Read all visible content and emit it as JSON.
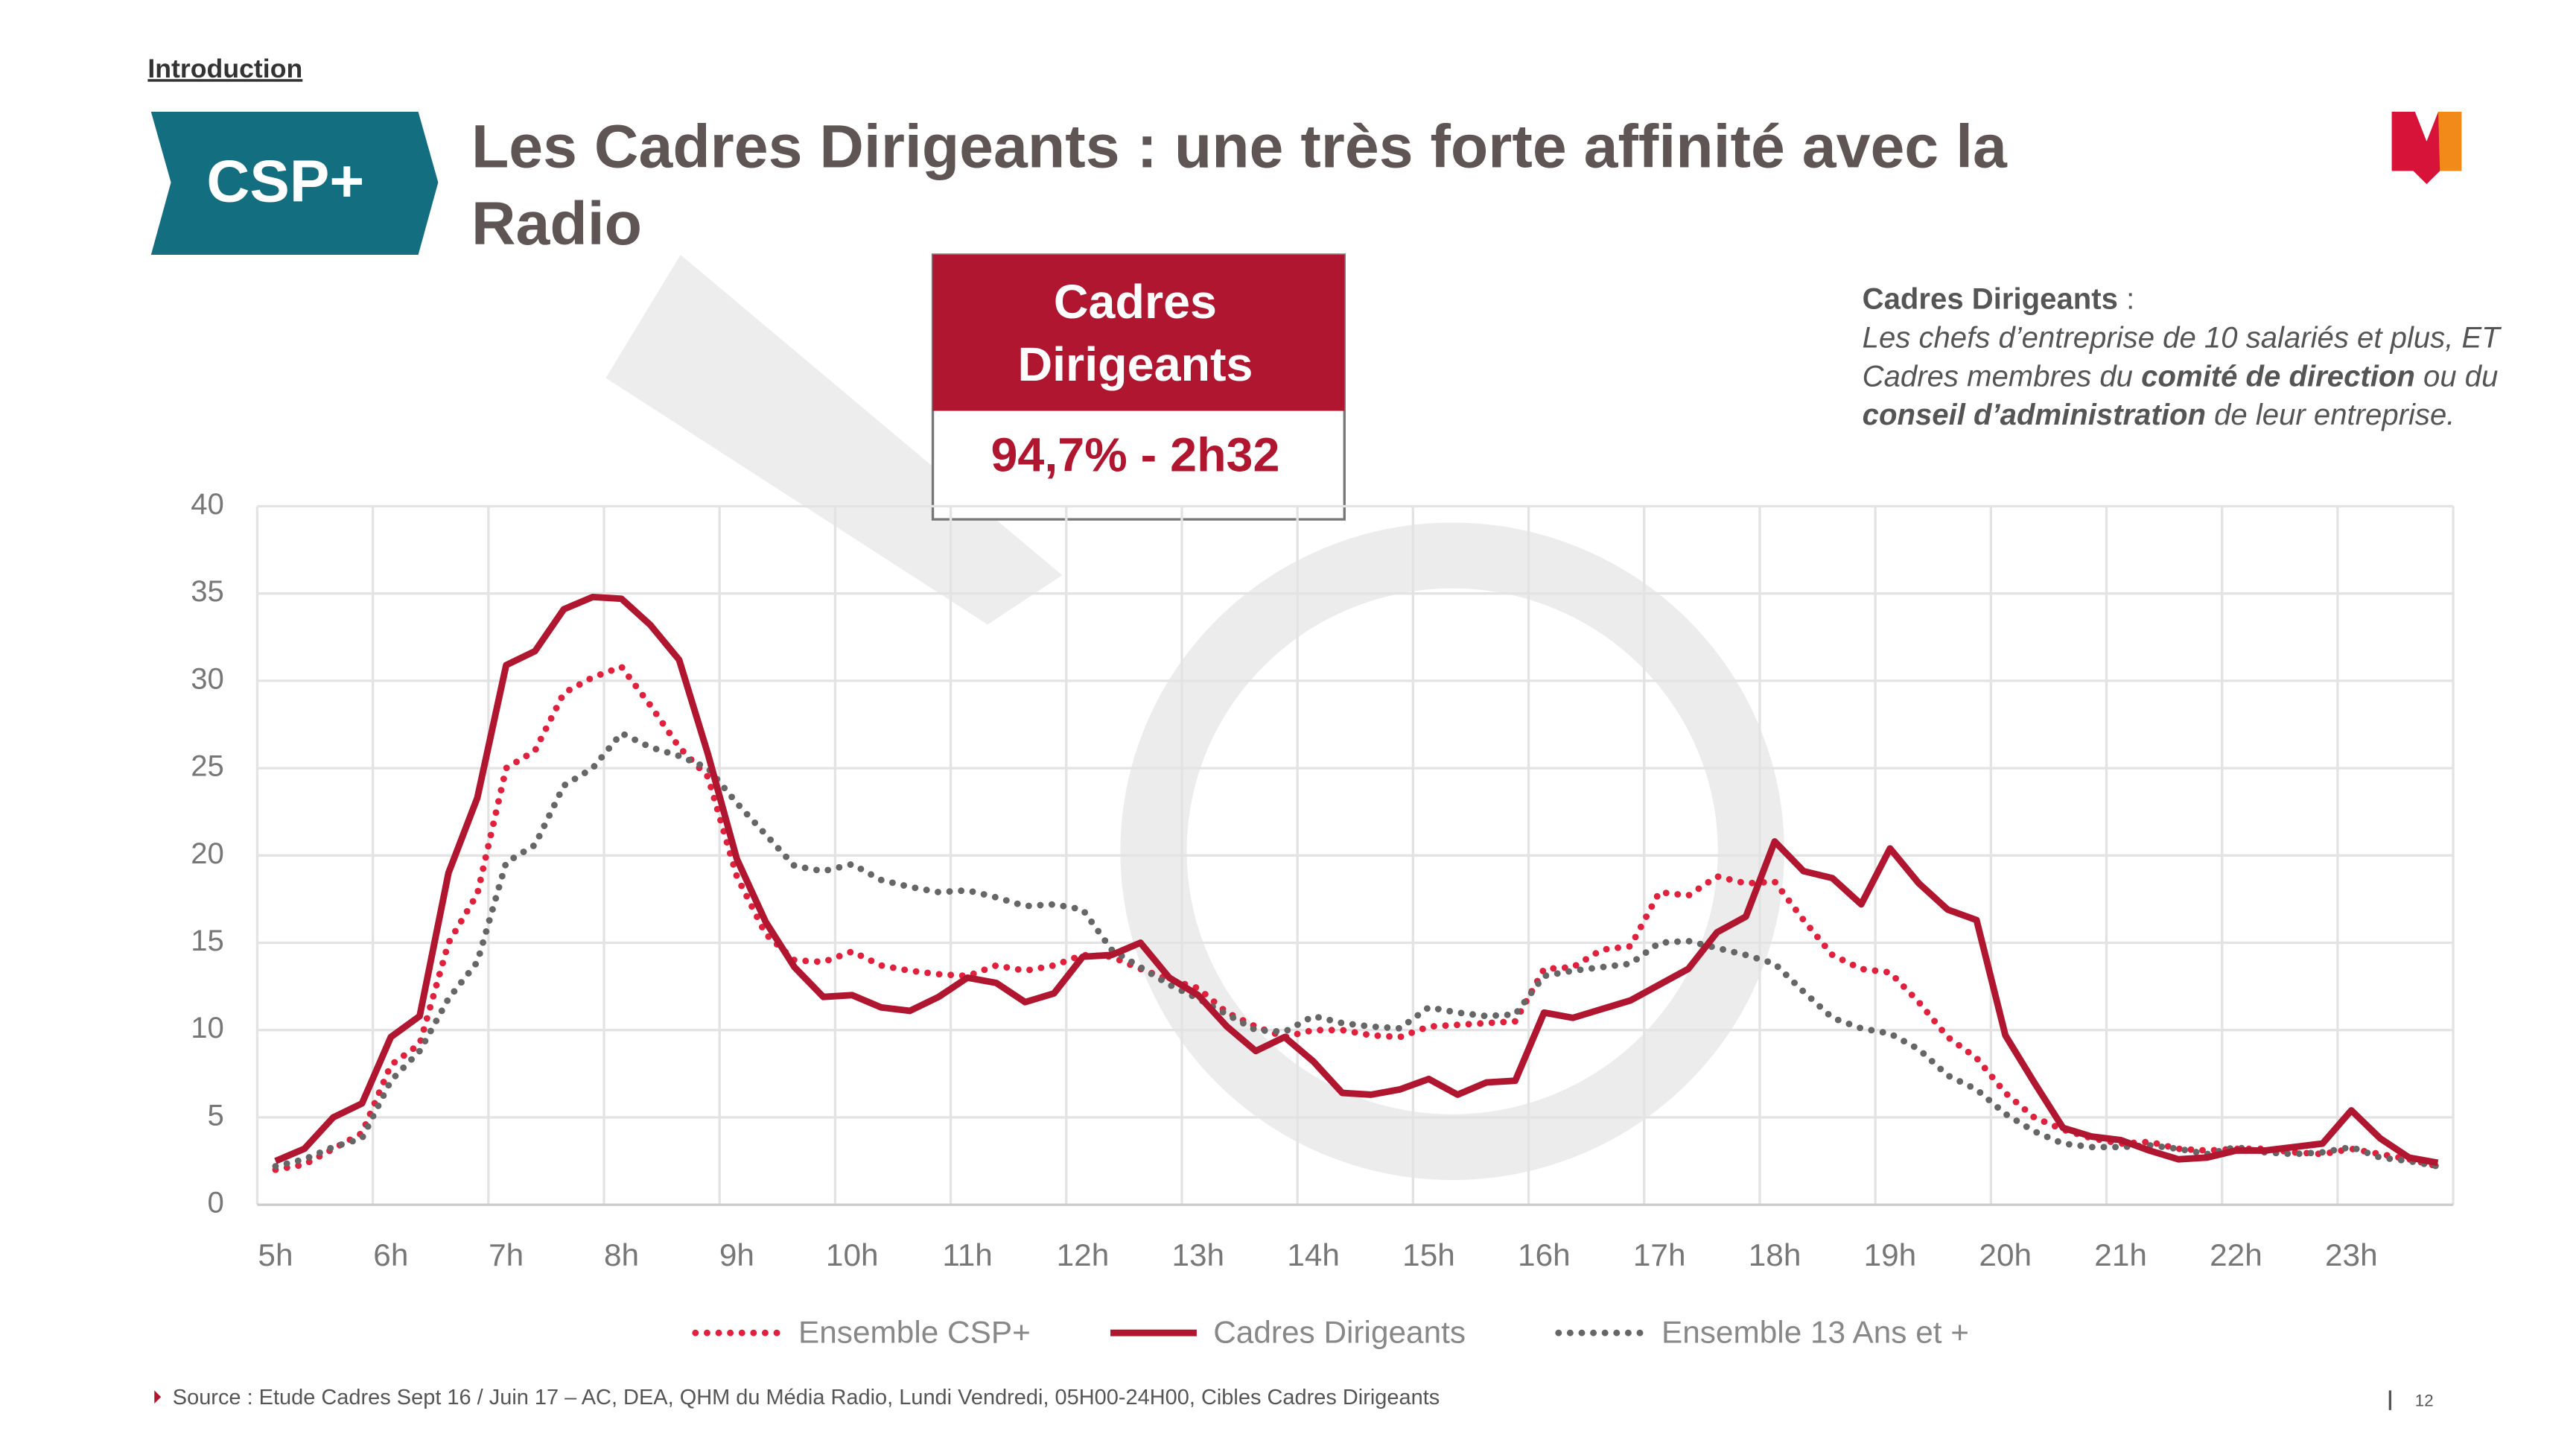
{
  "header": {
    "section": "Introduction",
    "badge": "CSP+",
    "title_lines": [
      "Les Cadres Dirigeants : une très forte affinité avec la",
      "Radio"
    ]
  },
  "highlight": {
    "title_lines": [
      "Cadres",
      "Dirigeants"
    ],
    "value": "94,7% - 2h32"
  },
  "definition": {
    "lines": [
      [
        {
          "text": "Cadres Dirigeants",
          "bold": true
        },
        {
          "text": " :",
          "bold": false
        }
      ],
      [
        {
          "text": "Les chefs d’entreprise de 10 salariés et plus, ET",
          "bold": false
        }
      ],
      [
        {
          "text": "Cadres membres du ",
          "bold": false
        },
        {
          "text": "comité de direction",
          "bold": true
        },
        {
          "text": " ou du",
          "bold": false
        }
      ],
      [
        {
          "text": "conseil d’administration",
          "bold": true
        },
        {
          "text": " de leur entreprise.",
          "bold": false
        }
      ]
    ]
  },
  "chart_data": {
    "type": "line",
    "categories": [
      "5h",
      null,
      null,
      null,
      "6h",
      null,
      null,
      null,
      "7h",
      null,
      null,
      null,
      "8h",
      null,
      null,
      null,
      "9h",
      null,
      null,
      null,
      "10h",
      null,
      null,
      null,
      "11h",
      null,
      null,
      null,
      "12h",
      null,
      null,
      null,
      "13h",
      null,
      null,
      null,
      "14h",
      null,
      null,
      null,
      "15h",
      null,
      null,
      null,
      "16h",
      null,
      null,
      null,
      "17h",
      null,
      null,
      null,
      "18h",
      null,
      null,
      null,
      "19h",
      null,
      null,
      null,
      "20h",
      null,
      null,
      null,
      "21h",
      null,
      null,
      null,
      "22h",
      null,
      null,
      null,
      "23h",
      null,
      null,
      null
    ],
    "ylim": [
      0,
      40
    ],
    "yticks": [
      0,
      5,
      10,
      15,
      20,
      25,
      30,
      35,
      40
    ],
    "grid": true,
    "legend": "bottom",
    "series": [
      {
        "name": "Ensemble CSP+",
        "color": "#e0203c",
        "style": "dotted",
        "values": [
          2.0,
          2.3,
          3.2,
          4.1,
          8.0,
          9.2,
          15.0,
          17.8,
          25.0,
          26.0,
          29.3,
          30.2,
          30.8,
          28.6,
          26.2,
          24.5,
          18.8,
          15.5,
          14.0,
          13.9,
          14.5,
          13.7,
          13.4,
          13.2,
          13.1,
          13.7,
          13.4,
          13.7,
          14.3,
          14.2,
          13.5,
          12.9,
          12.4,
          11.0,
          10.2,
          9.6,
          10.0,
          10.0,
          9.7,
          9.6,
          10.2,
          10.3,
          10.4,
          10.5,
          13.5,
          13.6,
          14.6,
          14.8,
          17.9,
          17.7,
          18.8,
          18.4,
          18.5,
          16.3,
          14.3,
          13.5,
          13.3,
          11.6,
          9.6,
          8.4,
          6.4,
          5.0,
          4.3,
          3.8,
          3.5,
          3.6,
          3.2,
          3.1,
          3.2,
          3.2,
          3.0,
          2.9,
          3.2,
          2.9,
          2.6,
          2.2
        ]
      },
      {
        "name": "Cadres Dirigeants",
        "color": "#b0162f",
        "style": "solid",
        "values": [
          2.5,
          3.2,
          5.0,
          5.8,
          9.6,
          10.8,
          19.0,
          23.3,
          30.9,
          31.7,
          34.1,
          34.8,
          34.7,
          33.2,
          31.2,
          25.8,
          19.8,
          16.2,
          13.6,
          11.9,
          12.0,
          11.3,
          11.1,
          11.9,
          13.0,
          12.7,
          11.6,
          12.1,
          14.2,
          14.3,
          15.0,
          13.0,
          12.0,
          10.2,
          8.8,
          9.6,
          8.2,
          6.4,
          6.3,
          6.6,
          7.2,
          6.3,
          7.0,
          7.1,
          11.0,
          10.7,
          11.2,
          11.7,
          12.6,
          13.5,
          15.6,
          16.5,
          20.8,
          19.1,
          18.7,
          17.2,
          20.4,
          18.4,
          16.9,
          16.3,
          9.7,
          7.0,
          4.4,
          3.9,
          3.7,
          3.1,
          2.6,
          2.7,
          3.1,
          3.1,
          3.3,
          3.5,
          5.4,
          3.8,
          2.7,
          2.4
        ]
      },
      {
        "name": "Ensemble 13 Ans et +",
        "color": "#666666",
        "style": "dotted",
        "values": [
          2.2,
          2.6,
          3.3,
          3.8,
          7.1,
          8.8,
          11.8,
          13.9,
          19.6,
          20.6,
          24.0,
          25.0,
          27.0,
          26.2,
          25.7,
          25.0,
          23.0,
          21.2,
          19.4,
          19.1,
          19.5,
          18.6,
          18.2,
          17.9,
          18.0,
          17.6,
          17.1,
          17.2,
          16.9,
          14.6,
          13.6,
          12.6,
          11.8,
          10.9,
          10.0,
          9.9,
          10.8,
          10.4,
          10.2,
          10.1,
          11.3,
          11.0,
          10.8,
          10.9,
          13.1,
          13.4,
          13.6,
          13.8,
          15.0,
          15.1,
          14.7,
          14.3,
          13.8,
          12.2,
          10.7,
          10.1,
          9.8,
          8.9,
          7.4,
          6.6,
          5.2,
          4.2,
          3.5,
          3.3,
          3.3,
          3.4,
          3.2,
          2.9,
          3.3,
          3.0,
          2.9,
          3.0,
          3.3,
          2.7,
          2.5,
          2.2
        ]
      }
    ]
  },
  "footer": {
    "source": "Source : Etude Cadres Sept 16 / Juin 17 – AC, DEA, QHM du Média Radio, Lundi Vendredi, 05H00-24H00, Cibles Cadres Dirigeants",
    "page": "12"
  }
}
